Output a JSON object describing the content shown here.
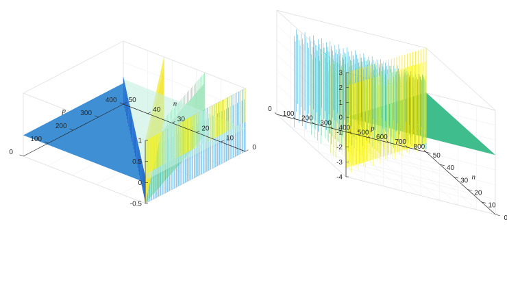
{
  "colors": {
    "plane_left": "#3f8fd4",
    "plane_right": "#3fbd8c",
    "map": [
      "#3e26a8",
      "#2f6be0",
      "#17a5d8",
      "#2ecfb6",
      "#9bd95a",
      "#f2e43a",
      "#f9fb0e"
    ]
  },
  "chart_data": [
    {
      "type": "surface",
      "title": "",
      "xlabel": "n",
      "ylabel": "p",
      "zlabel": "",
      "x_ticks": [
        "0",
        "10",
        "20",
        "30",
        "40",
        "50"
      ],
      "y_ticks": [
        "0",
        "100",
        "200",
        "300",
        "400"
      ],
      "z_ticks": [
        "-0.5",
        "0",
        "0.5",
        "1"
      ],
      "xlim": [
        0,
        50
      ],
      "ylim": [
        0,
        400
      ],
      "zlim": [
        -0.5,
        1
      ],
      "grid": true,
      "plane_value": 0,
      "oscillation_range": [
        -0.5,
        1
      ],
      "oscillating_region": "p > 8n"
    },
    {
      "type": "surface",
      "title": "",
      "xlabel": "n",
      "ylabel": "p",
      "zlabel": "",
      "x_ticks": [
        "0",
        "10",
        "20",
        "30",
        "40",
        "50"
      ],
      "y_ticks": [
        "0",
        "100",
        "200",
        "300",
        "400",
        "500",
        "600",
        "700",
        "800"
      ],
      "z_ticks": [
        "-4",
        "-3",
        "-2",
        "-1",
        "0",
        "1",
        "2",
        "3"
      ],
      "xlim": [
        0,
        50
      ],
      "ylim": [
        0,
        800
      ],
      "zlim": [
        -4,
        3
      ],
      "grid": true,
      "plane_value": 0,
      "oscillation_range": [
        -4,
        3
      ],
      "oscillating_region": "p < 16n"
    }
  ]
}
